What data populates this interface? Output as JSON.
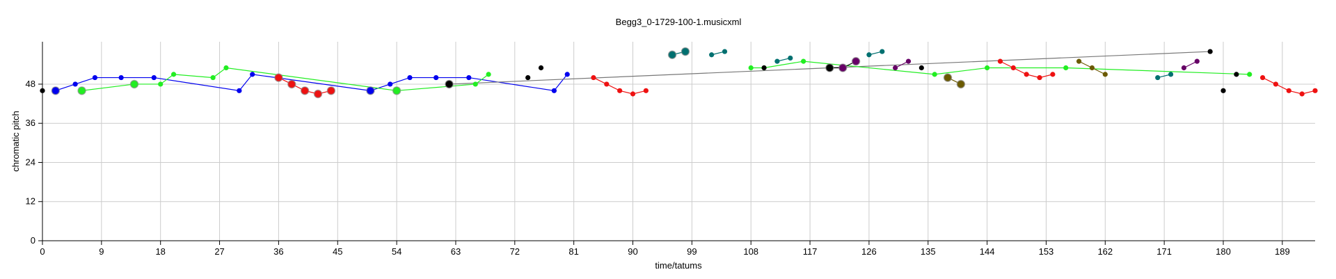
{
  "chart_data": {
    "type": "scatter",
    "title": "Begg3_0-1729-100-1.musicxml",
    "xlabel": "time/tatums",
    "ylabel": "chromatic pitch",
    "xlim": [
      0,
      194
    ],
    "ylim": [
      0,
      61
    ],
    "xticks": [
      0,
      9,
      18,
      27,
      36,
      45,
      54,
      63,
      72,
      81,
      90,
      99,
      108,
      117,
      126,
      135,
      144,
      153,
      162,
      171,
      180,
      189
    ],
    "yticks": [
      0,
      12,
      24,
      36,
      48
    ],
    "grid": true,
    "colors": {
      "blue": "#0000ee",
      "green": "#22ee22",
      "red": "#ee1111",
      "black": "#000000",
      "gray": "#777777",
      "teal": "#007070",
      "purple": "#660066",
      "olive": "#6b5a00"
    },
    "series": [
      {
        "color": "blue",
        "edges": true,
        "points": [
          {
            "x": 2,
            "y": 46,
            "big": true
          },
          {
            "x": 5,
            "y": 48
          },
          {
            "x": 8,
            "y": 50
          },
          {
            "x": 12,
            "y": 50
          },
          {
            "x": 17,
            "y": 50
          },
          {
            "x": 30,
            "y": 46
          },
          {
            "x": 32,
            "y": 51
          },
          {
            "x": 50,
            "y": 46,
            "big": true
          },
          {
            "x": 53,
            "y": 48
          },
          {
            "x": 56,
            "y": 50
          },
          {
            "x": 60,
            "y": 50
          },
          {
            "x": 65,
            "y": 50
          },
          {
            "x": 78,
            "y": 46
          },
          {
            "x": 80,
            "y": 51
          }
        ]
      },
      {
        "color": "green",
        "edges": true,
        "points": [
          {
            "x": 6,
            "y": 46,
            "big": true
          },
          {
            "x": 14,
            "y": 48,
            "big": true
          },
          {
            "x": 18,
            "y": 48
          },
          {
            "x": 20,
            "y": 51
          },
          {
            "x": 26,
            "y": 50
          },
          {
            "x": 28,
            "y": 53
          },
          {
            "x": 54,
            "y": 46,
            "big": true
          },
          {
            "x": 66,
            "y": 48
          },
          {
            "x": 68,
            "y": 51
          }
        ]
      },
      {
        "color": "red",
        "edges": true,
        "points": [
          {
            "x": 36,
            "y": 50,
            "big": true
          },
          {
            "x": 38,
            "y": 48,
            "big": true
          },
          {
            "x": 40,
            "y": 46,
            "big": true
          },
          {
            "x": 42,
            "y": 45,
            "big": true
          },
          {
            "x": 44,
            "y": 46,
            "big": true
          }
        ]
      },
      {
        "color": "black",
        "edges": false,
        "points": [
          {
            "x": 0,
            "y": 46
          },
          {
            "x": 74,
            "y": 50
          },
          {
            "x": 76,
            "y": 53
          }
        ]
      },
      {
        "color": "gray",
        "edges": true,
        "points": [
          {
            "x": 62,
            "y": 48,
            "big": true,
            "fill": "black"
          },
          {
            "x": 178,
            "y": 58,
            "fill": "black"
          }
        ]
      },
      {
        "color": "red",
        "edges": true,
        "points": [
          {
            "x": 84,
            "y": 50
          },
          {
            "x": 86,
            "y": 48
          },
          {
            "x": 88,
            "y": 46
          },
          {
            "x": 90,
            "y": 45
          },
          {
            "x": 92,
            "y": 46
          }
        ]
      },
      {
        "color": "teal",
        "edges": true,
        "points": [
          {
            "x": 96,
            "y": 57,
            "big": true
          },
          {
            "x": 98,
            "y": 58,
            "big": true
          }
        ]
      },
      {
        "color": "teal",
        "edges": true,
        "points": [
          {
            "x": 102,
            "y": 57
          },
          {
            "x": 104,
            "y": 58
          }
        ]
      },
      {
        "color": "green",
        "edges": true,
        "points": [
          {
            "x": 108,
            "y": 53
          },
          {
            "x": 110,
            "y": 53
          },
          {
            "x": 116,
            "y": 55
          },
          {
            "x": 136,
            "y": 51
          },
          {
            "x": 144,
            "y": 53
          },
          {
            "x": 156,
            "y": 53
          },
          {
            "x": 184,
            "y": 51
          }
        ]
      },
      {
        "color": "black",
        "edges": false,
        "points": [
          {
            "x": 110,
            "y": 53
          },
          {
            "x": 134,
            "y": 53
          },
          {
            "x": 180,
            "y": 46
          },
          {
            "x": 182,
            "y": 51
          }
        ]
      },
      {
        "color": "teal",
        "edges": true,
        "points": [
          {
            "x": 112,
            "y": 55
          },
          {
            "x": 114,
            "y": 56
          }
        ]
      },
      {
        "color": "black",
        "edges": true,
        "points": [
          {
            "x": 120,
            "y": 53,
            "big": true
          },
          {
            "x": 122,
            "y": 53,
            "big": true,
            "fill": "purple"
          },
          {
            "x": 124,
            "y": 55,
            "big": true,
            "fill": "purple"
          }
        ]
      },
      {
        "color": "teal",
        "edges": true,
        "points": [
          {
            "x": 126,
            "y": 57
          },
          {
            "x": 128,
            "y": 58
          }
        ]
      },
      {
        "color": "purple",
        "edges": true,
        "points": [
          {
            "x": 130,
            "y": 53
          },
          {
            "x": 132,
            "y": 55
          }
        ]
      },
      {
        "color": "olive",
        "edges": true,
        "points": [
          {
            "x": 138,
            "y": 50,
            "big": true
          },
          {
            "x": 140,
            "y": 48,
            "big": true
          }
        ]
      },
      {
        "color": "red",
        "edges": true,
        "points": [
          {
            "x": 146,
            "y": 55
          },
          {
            "x": 148,
            "y": 53
          },
          {
            "x": 150,
            "y": 51
          },
          {
            "x": 152,
            "y": 50
          },
          {
            "x": 154,
            "y": 51
          }
        ]
      },
      {
        "color": "olive",
        "edges": true,
        "points": [
          {
            "x": 158,
            "y": 55
          },
          {
            "x": 160,
            "y": 53
          },
          {
            "x": 162,
            "y": 51
          }
        ]
      },
      {
        "color": "teal",
        "edges": true,
        "points": [
          {
            "x": 170,
            "y": 50
          },
          {
            "x": 172,
            "y": 51
          }
        ]
      },
      {
        "color": "purple",
        "edges": true,
        "points": [
          {
            "x": 174,
            "y": 53
          },
          {
            "x": 176,
            "y": 55
          }
        ]
      },
      {
        "color": "red",
        "edges": true,
        "points": [
          {
            "x": 186,
            "y": 50
          },
          {
            "x": 188,
            "y": 48
          },
          {
            "x": 190,
            "y": 46
          },
          {
            "x": 192,
            "y": 45
          },
          {
            "x": 194,
            "y": 46
          }
        ]
      }
    ]
  }
}
